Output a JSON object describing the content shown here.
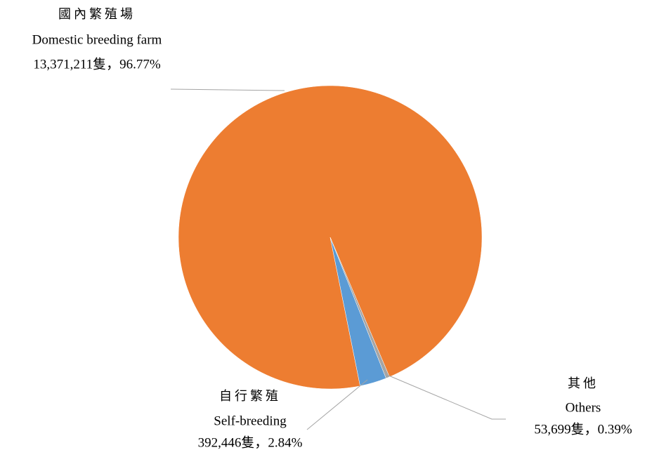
{
  "chart_data": {
    "type": "pie",
    "categories": [
      "國內繁殖場",
      "自行繁殖",
      "其他"
    ],
    "categories_en": [
      "Domestic breeding farm",
      "Self-breeding",
      "Others"
    ],
    "counts": [
      13371211,
      392446,
      53699
    ],
    "values": [
      96.77,
      2.84,
      0.39
    ],
    "value_labels": [
      "13,371,211隻，96.77%",
      "392,446隻，2.84%",
      "53,699隻，0.39%"
    ],
    "colors": [
      "#ed7d31",
      "#5b9bd5",
      "#a5a5a5"
    ]
  }
}
